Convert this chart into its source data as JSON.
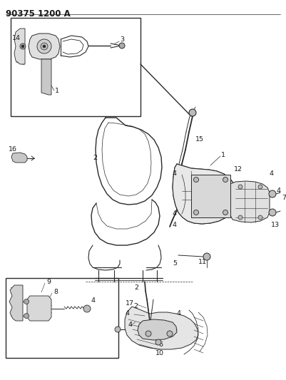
{
  "title": "90375 1200 A",
  "bg_color": "#ffffff",
  "line_color": "#2a2a2a",
  "text_color": "#1a1a1a",
  "title_fontsize": 8.5,
  "label_fontsize": 6.8,
  "fig_width": 4.01,
  "fig_height": 5.33,
  "dpi": 100
}
